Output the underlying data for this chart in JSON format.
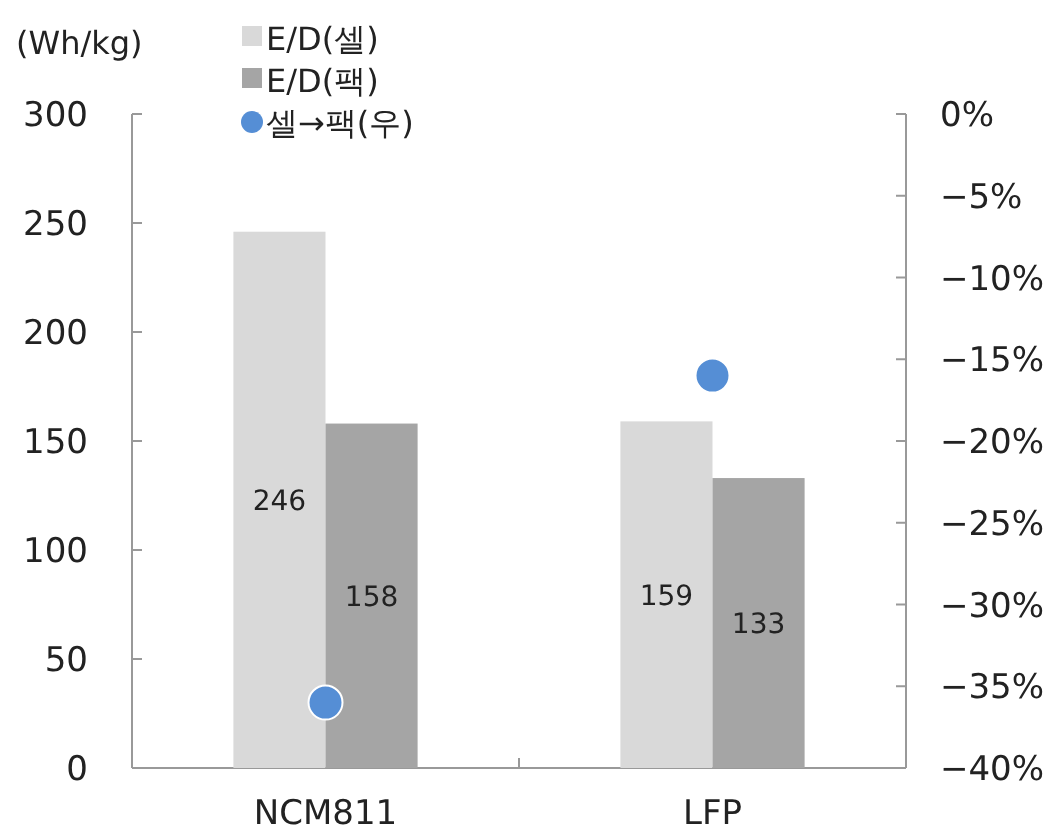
{
  "chart_data": {
    "type": "bar",
    "ylabel": "(Wh/kg)",
    "categories": [
      "NCM811",
      "LFP"
    ],
    "series": [
      {
        "name": "E/D(셀)",
        "color": "#d9d9d9",
        "values": [
          246,
          159
        ],
        "value_labels": [
          "246",
          "159"
        ]
      },
      {
        "name": "E/D(팩)",
        "color": "#a5a5a5",
        "values": [
          158,
          133
        ],
        "value_labels": [
          "158",
          "133"
        ]
      },
      {
        "name": "셀→팩(우)",
        "type": "scatter",
        "axis": "y2",
        "marker": "circle",
        "color": "#558ed5",
        "values": [
          -36,
          -16
        ]
      }
    ],
    "ylim": [
      0,
      300
    ],
    "yticks": [
      0,
      50,
      100,
      150,
      200,
      250,
      300
    ],
    "y2lim": [
      -40,
      0
    ],
    "y2ticks": [
      {
        "value": -40,
        "label": "−40%"
      },
      {
        "value": -35,
        "label": "−35%"
      },
      {
        "value": -30,
        "label": "−30%"
      },
      {
        "value": -25,
        "label": "−25%"
      },
      {
        "value": -20,
        "label": "−20%"
      },
      {
        "value": -15,
        "label": "−15%"
      },
      {
        "value": -10,
        "label": "−10%"
      },
      {
        "value": -5,
        "label": "−5%"
      },
      {
        "value": 0,
        "label": "0%"
      }
    ],
    "grid": false,
    "legend": "top left"
  }
}
